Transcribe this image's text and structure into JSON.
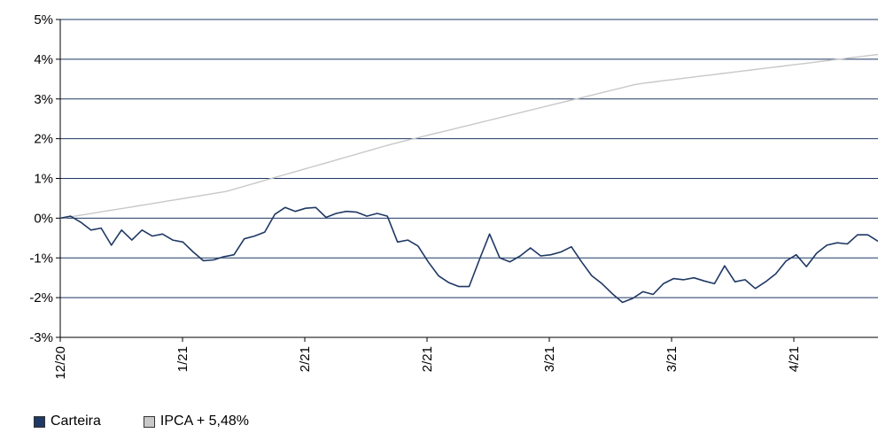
{
  "chart_data": {
    "type": "line",
    "ylim": [
      -3,
      5
    ],
    "y_ticks": [
      -3,
      -2,
      -1,
      0,
      1,
      2,
      3,
      4,
      5
    ],
    "y_tick_labels": [
      "-3%",
      "-2%",
      "-1%",
      "0%",
      "1%",
      "2%",
      "3%",
      "4%",
      "5%"
    ],
    "x_tick_labels": [
      "12/20",
      "1/21",
      "2/21",
      "2/21",
      "3/21",
      "3/21",
      "4/21"
    ],
    "grid": "horizontal",
    "legend_position": "bottom-left",
    "series": [
      {
        "name": "Carteira",
        "color": "#1f3864",
        "values": [
          0,
          0.05,
          -0.1,
          -0.3,
          -0.25,
          -0.68,
          -0.3,
          -0.55,
          -0.3,
          -0.45,
          -0.4,
          -0.55,
          -0.6,
          -0.85,
          -1.07,
          -1.05,
          -0.97,
          -0.92,
          -0.52,
          -0.45,
          -0.35,
          0.1,
          0.27,
          0.17,
          0.25,
          0.27,
          0.02,
          0.12,
          0.17,
          0.15,
          0.05,
          0.12,
          0.05,
          -0.6,
          -0.55,
          -0.7,
          -1.1,
          -1.45,
          -1.62,
          -1.72,
          -1.72,
          -1.05,
          -0.4,
          -1.0,
          -1.1,
          -0.95,
          -0.75,
          -0.95,
          -0.92,
          -0.85,
          -0.72,
          -1.1,
          -1.45,
          -1.65,
          -1.9,
          -2.12,
          -2.02,
          -1.85,
          -1.92,
          -1.65,
          -1.52,
          -1.55,
          -1.5,
          -1.58,
          -1.65,
          -1.2,
          -1.6,
          -1.55,
          -1.77,
          -1.6,
          -1.4,
          -1.08,
          -0.92,
          -1.22,
          -0.88,
          -0.68,
          -0.62,
          -0.65,
          -0.42,
          -0.42,
          -0.58
        ]
      },
      {
        "name": "IPCA + 5,48%",
        "color": "#c8c8c8",
        "values": [
          0,
          0.03,
          0.07,
          0.11,
          0.15,
          0.19,
          0.23,
          0.27,
          0.31,
          0.35,
          0.39,
          0.43,
          0.47,
          0.51,
          0.55,
          0.59,
          0.63,
          0.67,
          0.74,
          0.81,
          0.88,
          0.95,
          1.02,
          1.09,
          1.16,
          1.23,
          1.3,
          1.37,
          1.44,
          1.51,
          1.58,
          1.65,
          1.72,
          1.79,
          1.86,
          1.92,
          1.98,
          2.04,
          2.1,
          2.16,
          2.22,
          2.28,
          2.34,
          2.4,
          2.46,
          2.52,
          2.58,
          2.64,
          2.7,
          2.76,
          2.82,
          2.88,
          2.94,
          3.0,
          3.06,
          3.12,
          3.18,
          3.24,
          3.3,
          3.36,
          3.4,
          3.43,
          3.46,
          3.49,
          3.52,
          3.55,
          3.58,
          3.61,
          3.64,
          3.67,
          3.7,
          3.73,
          3.76,
          3.79,
          3.82,
          3.85,
          3.88,
          3.91,
          3.94,
          3.97,
          4.0,
          4.03,
          4.06,
          4.09,
          4.12
        ]
      }
    ]
  }
}
